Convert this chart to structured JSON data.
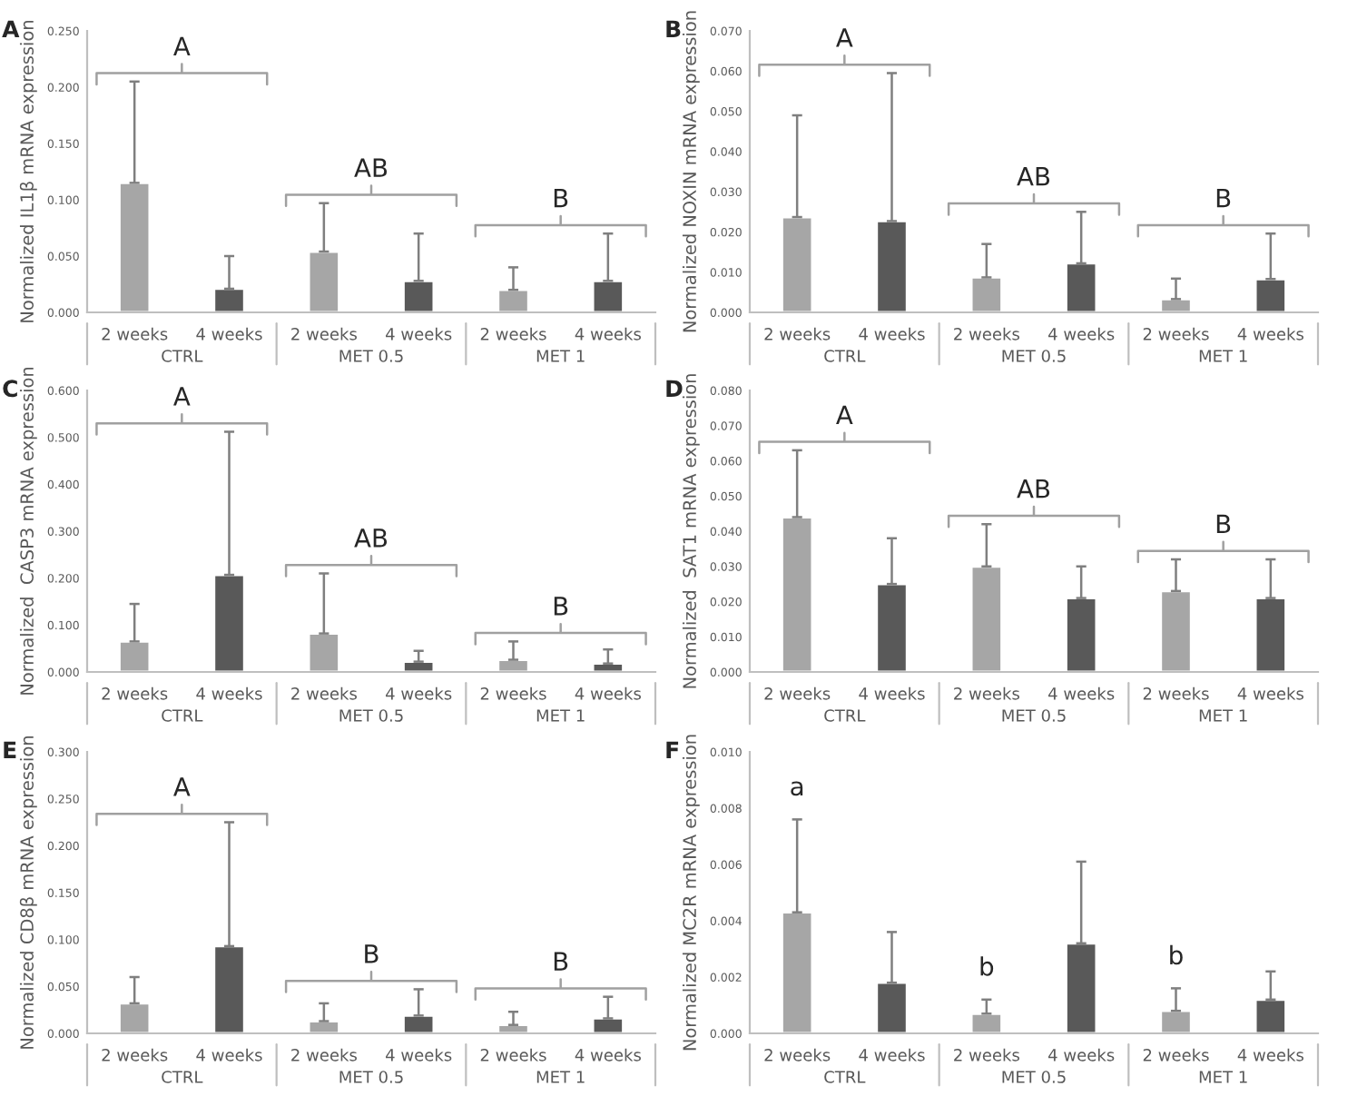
{
  "chart_data": [
    {
      "type": "bar",
      "title": "A",
      "ylabel": "Normalized IL1β mRNA expression",
      "categories": [
        "2 weeks",
        "4 weeks",
        "2 weeks",
        "4 weeks",
        "2 weeks",
        "4 weeks"
      ],
      "values": [
        0.115,
        0.021,
        0.054,
        0.028,
        0.02,
        0.028
      ],
      "errors": [
        [
          0.115,
          0.205
        ],
        [
          0.021,
          0.05
        ],
        [
          0.054,
          0.097
        ],
        [
          0.028,
          0.07
        ],
        [
          0.02,
          0.04
        ],
        [
          0.028,
          0.07
        ]
      ],
      "colors": [
        "#a6a6a6",
        "#595959",
        "#a6a6a6",
        "#595959",
        "#a6a6a6",
        "#595959"
      ],
      "ylim": [
        0,
        0.25
      ],
      "yticks": [
        {
          "value": 0,
          "label": "0.000"
        },
        {
          "value": 0.05,
          "label": "0.050"
        },
        {
          "value": 0.1,
          "label": "0.100"
        },
        {
          "value": 0.15,
          "label": "0.150"
        },
        {
          "value": 0.2,
          "label": "0.200"
        },
        {
          "value": 0.25,
          "label": "0.250"
        }
      ],
      "annotations": [
        "A",
        "AB",
        "B",
        "CTRL",
        "MET 0.5",
        "MET 1"
      ]
    },
    {
      "type": "bar",
      "title": "B",
      "ylabel": "Normalized NOXIN mRNA expression",
      "categories": [
        "2 weeks",
        "4 weeks",
        "2 weeks",
        "4 weeks",
        "2 weeks",
        "4 weeks"
      ],
      "values": [
        0.0237,
        0.0227,
        0.0087,
        0.0122,
        0.0033,
        0.0083
      ],
      "errors": [
        [
          0.0237,
          0.049
        ],
        [
          0.0227,
          0.0595
        ],
        [
          0.0087,
          0.017
        ],
        [
          0.0122,
          0.025
        ],
        [
          0.0033,
          0.0084
        ],
        [
          0.0083,
          0.0196
        ]
      ],
      "colors": [
        "#a6a6a6",
        "#595959",
        "#a6a6a6",
        "#595959",
        "#a6a6a6",
        "#595959"
      ],
      "ylim": [
        0,
        0.07
      ],
      "yticks": [
        {
          "value": 0,
          "label": "0.000"
        },
        {
          "value": 0.01,
          "label": "0.010"
        },
        {
          "value": 0.02,
          "label": "0.020"
        },
        {
          "value": 0.03,
          "label": "0.030"
        },
        {
          "value": 0.04,
          "label": "0.040"
        },
        {
          "value": 0.05,
          "label": "0.050"
        },
        {
          "value": 0.06,
          "label": "0.060"
        },
        {
          "value": 0.07,
          "label": "0.070"
        }
      ],
      "annotations": [
        "A",
        "AB",
        "B",
        "CTRL",
        "MET 0.5",
        "MET 1"
      ]
    },
    {
      "type": "bar",
      "title": "C",
      "ylabel": "Normalized  CASP3 mRNA expression",
      "categories": [
        "2 weeks",
        "4 weeks",
        "2 weeks",
        "4 weeks",
        "2 weeks",
        "4 weeks"
      ],
      "values": [
        0.065,
        0.207,
        0.082,
        0.022,
        0.026,
        0.018
      ],
      "errors": [
        [
          0.065,
          0.145
        ],
        [
          0.207,
          0.512
        ],
        [
          0.082,
          0.21
        ],
        [
          0.022,
          0.045
        ],
        [
          0.026,
          0.065
        ],
        [
          0.018,
          0.048
        ]
      ],
      "colors": [
        "#a6a6a6",
        "#595959",
        "#a6a6a6",
        "#595959",
        "#a6a6a6",
        "#595959"
      ],
      "ylim": [
        0,
        0.6
      ],
      "yticks": [
        {
          "value": 0,
          "label": "0.000"
        },
        {
          "value": 0.1,
          "label": "0.100"
        },
        {
          "value": 0.2,
          "label": "0.200"
        },
        {
          "value": 0.3,
          "label": "0.300"
        },
        {
          "value": 0.4,
          "label": "0.400"
        },
        {
          "value": 0.5,
          "label": "0.500"
        },
        {
          "value": 0.6,
          "label": "0.600"
        }
      ],
      "annotations": [
        "A",
        "AB",
        "B",
        "CTRL",
        "MET 0.5",
        "MET 1"
      ]
    },
    {
      "type": "bar",
      "title": "D",
      "ylabel": "Normalized  SAT1 mRNA expression",
      "categories": [
        "2 weeks",
        "4 weeks",
        "2 weeks",
        "4 weeks",
        "2 weeks",
        "4 weeks"
      ],
      "values": [
        0.044,
        0.025,
        0.03,
        0.021,
        0.023,
        0.021
      ],
      "errors": [
        [
          0.044,
          0.063
        ],
        [
          0.025,
          0.038
        ],
        [
          0.03,
          0.042
        ],
        [
          0.021,
          0.03
        ],
        [
          0.023,
          0.032
        ],
        [
          0.021,
          0.032
        ]
      ],
      "colors": [
        "#a6a6a6",
        "#595959",
        "#a6a6a6",
        "#595959",
        "#a6a6a6",
        "#595959"
      ],
      "ylim": [
        0,
        0.08
      ],
      "yticks": [
        {
          "value": 0,
          "label": "0.000"
        },
        {
          "value": 0.01,
          "label": "0.010"
        },
        {
          "value": 0.02,
          "label": "0.020"
        },
        {
          "value": 0.03,
          "label": "0.030"
        },
        {
          "value": 0.04,
          "label": "0.040"
        },
        {
          "value": 0.05,
          "label": "0.050"
        },
        {
          "value": 0.06,
          "label": "0.060"
        },
        {
          "value": 0.07,
          "label": "0.070"
        },
        {
          "value": 0.08,
          "label": "0.080"
        }
      ],
      "annotations": [
        "A",
        "AB",
        "B",
        "CTRL",
        "MET 0.5",
        "MET 1"
      ]
    },
    {
      "type": "bar",
      "title": "E",
      "ylabel": "Normalized CD8β mRNA expression",
      "categories": [
        "2 weeks",
        "4 weeks",
        "2 weeks",
        "4 weeks",
        "2 weeks",
        "4 weeks"
      ],
      "values": [
        0.032,
        0.093,
        0.013,
        0.019,
        0.009,
        0.016
      ],
      "errors": [
        [
          0.032,
          0.06
        ],
        [
          0.093,
          0.225
        ],
        [
          0.013,
          0.032
        ],
        [
          0.019,
          0.047
        ],
        [
          0.009,
          0.023
        ],
        [
          0.016,
          0.039
        ]
      ],
      "colors": [
        "#a6a6a6",
        "#595959",
        "#a6a6a6",
        "#595959",
        "#a6a6a6",
        "#595959"
      ],
      "ylim": [
        0,
        0.3
      ],
      "yticks": [
        {
          "value": 0,
          "label": "0.000"
        },
        {
          "value": 0.05,
          "label": "0.050"
        },
        {
          "value": 0.1,
          "label": "0.100"
        },
        {
          "value": 0.15,
          "label": "0.150"
        },
        {
          "value": 0.2,
          "label": "0.200"
        },
        {
          "value": 0.25,
          "label": "0.250"
        },
        {
          "value": 0.3,
          "label": "0.300"
        }
      ],
      "annotations": [
        "A",
        "B",
        "B",
        "CTRL",
        "MET 0.5",
        "MET 1"
      ]
    },
    {
      "type": "bar",
      "title": "F",
      "ylabel": "Normalized MC2R mRNA expression",
      "categories": [
        "2 weeks",
        "4 weeks",
        "2 weeks",
        "4 weeks",
        "2 weeks",
        "4 weeks"
      ],
      "values": [
        0.0043,
        0.0018,
        0.0007,
        0.0032,
        0.0008,
        0.0012
      ],
      "errors": [
        [
          0.0043,
          0.0076
        ],
        [
          0.0018,
          0.0036
        ],
        [
          0.0007,
          0.0012
        ],
        [
          0.0032,
          0.0061
        ],
        [
          0.0008,
          0.0016
        ],
        [
          0.0012,
          0.0022
        ]
      ],
      "colors": [
        "#a6a6a6",
        "#595959",
        "#a6a6a6",
        "#595959",
        "#a6a6a6",
        "#595959"
      ],
      "ylim": [
        0,
        0.01
      ],
      "yticks": [
        {
          "value": 0,
          "label": "0.000"
        },
        {
          "value": 0.002,
          "label": "0.002"
        },
        {
          "value": 0.004,
          "label": "0.004"
        },
        {
          "value": 0.006,
          "label": "0.006"
        },
        {
          "value": 0.008,
          "label": "0.008"
        },
        {
          "value": 0.01,
          "label": "0.010"
        }
      ],
      "annotations": [
        "a",
        "b",
        "b",
        "CTRL",
        "MET 0.5",
        "MET 1"
      ]
    }
  ]
}
